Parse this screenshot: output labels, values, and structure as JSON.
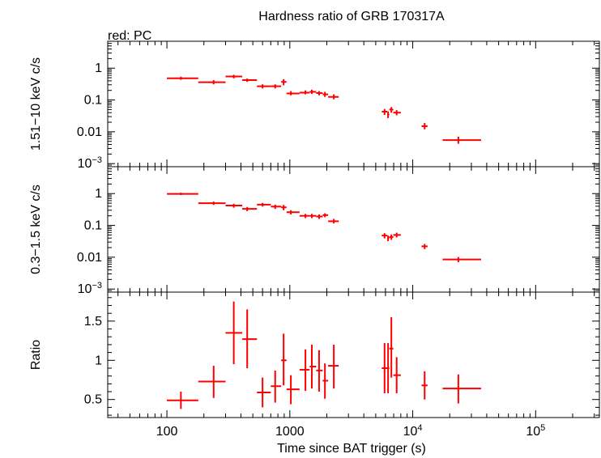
{
  "chart_data": {
    "type": "scatter",
    "title": "Hardness ratio of GRB 170317A",
    "legend_text": "red: PC",
    "xlabel": "Time since BAT trigger (s)",
    "xscale": "log",
    "xlim": [
      33,
      330000
    ],
    "x_ticks": [
      {
        "value": 100,
        "label": "100"
      },
      {
        "value": 1000,
        "label": "1000"
      },
      {
        "value": 10000,
        "label": "10",
        "exp": "4"
      },
      {
        "value": 100000,
        "label": "10",
        "exp": "5"
      }
    ],
    "series_color": "#ff0000",
    "panels": [
      {
        "name": "hard-band",
        "ylabel": "1.51−10 keV c/s",
        "yscale": "log",
        "ylim": [
          0.0008,
          7
        ],
        "y_ticks": [
          {
            "value": 1,
            "label": "1"
          },
          {
            "value": 0.1,
            "label": "0.1"
          },
          {
            "value": 0.01,
            "label": "0.01"
          },
          {
            "value": 0.001,
            "label": "10",
            "exp": "−3"
          }
        ],
        "points": [
          {
            "x": 130,
            "xlo": 100,
            "xhi": 180,
            "y": 0.48,
            "ylo": 0.43,
            "yhi": 0.54
          },
          {
            "x": 240,
            "xlo": 180,
            "xhi": 300,
            "y": 0.36,
            "ylo": 0.31,
            "yhi": 0.42
          },
          {
            "x": 350,
            "xlo": 300,
            "xhi": 410,
            "y": 0.55,
            "ylo": 0.48,
            "yhi": 0.62
          },
          {
            "x": 450,
            "xlo": 410,
            "xhi": 540,
            "y": 0.42,
            "ylo": 0.37,
            "yhi": 0.47
          },
          {
            "x": 600,
            "xlo": 540,
            "xhi": 700,
            "y": 0.27,
            "ylo": 0.23,
            "yhi": 0.31
          },
          {
            "x": 760,
            "xlo": 700,
            "xhi": 850,
            "y": 0.27,
            "ylo": 0.23,
            "yhi": 0.31
          },
          {
            "x": 890,
            "xlo": 850,
            "xhi": 940,
            "y": 0.37,
            "ylo": 0.29,
            "yhi": 0.45
          },
          {
            "x": 1020,
            "xlo": 940,
            "xhi": 1200,
            "y": 0.16,
            "ylo": 0.14,
            "yhi": 0.19
          },
          {
            "x": 1340,
            "xlo": 1200,
            "xhi": 1450,
            "y": 0.17,
            "ylo": 0.15,
            "yhi": 0.2
          },
          {
            "x": 1510,
            "xlo": 1450,
            "xhi": 1640,
            "y": 0.18,
            "ylo": 0.155,
            "yhi": 0.21
          },
          {
            "x": 1730,
            "xlo": 1640,
            "xhi": 1850,
            "y": 0.165,
            "ylo": 0.14,
            "yhi": 0.19
          },
          {
            "x": 1930,
            "xlo": 1850,
            "xhi": 2050,
            "y": 0.15,
            "ylo": 0.125,
            "yhi": 0.18
          },
          {
            "x": 2280,
            "xlo": 2050,
            "xhi": 2500,
            "y": 0.125,
            "ylo": 0.105,
            "yhi": 0.15
          },
          {
            "x": 5900,
            "xlo": 5600,
            "xhi": 6200,
            "y": 0.043,
            "ylo": 0.034,
            "yhi": 0.052
          },
          {
            "x": 6300,
            "xlo": 6200,
            "xhi": 6450,
            "y": 0.035,
            "ylo": 0.027,
            "yhi": 0.044
          },
          {
            "x": 6700,
            "xlo": 6450,
            "xhi": 6950,
            "y": 0.05,
            "ylo": 0.04,
            "yhi": 0.06
          },
          {
            "x": 7400,
            "xlo": 6950,
            "xhi": 8000,
            "y": 0.04,
            "ylo": 0.033,
            "yhi": 0.048
          },
          {
            "x": 12500,
            "xlo": 11800,
            "xhi": 13200,
            "y": 0.015,
            "ylo": 0.012,
            "yhi": 0.019
          },
          {
            "x": 23500,
            "xlo": 17500,
            "xhi": 36000,
            "y": 0.0055,
            "ylo": 0.0042,
            "yhi": 0.007
          }
        ]
      },
      {
        "name": "soft-band",
        "ylabel": "0.3−1.5 keV c/s",
        "yscale": "log",
        "ylim": [
          0.0008,
          7
        ],
        "y_ticks": [
          {
            "value": 1,
            "label": "1"
          },
          {
            "value": 0.1,
            "label": "0.1"
          },
          {
            "value": 0.01,
            "label": "0.01"
          },
          {
            "value": 0.001,
            "label": "10",
            "exp": "−3"
          }
        ],
        "points": [
          {
            "x": 130,
            "xlo": 100,
            "xhi": 180,
            "y": 0.98,
            "ylo": 0.9,
            "yhi": 1.07
          },
          {
            "x": 240,
            "xlo": 180,
            "xhi": 300,
            "y": 0.5,
            "ylo": 0.44,
            "yhi": 0.56
          },
          {
            "x": 350,
            "xlo": 300,
            "xhi": 410,
            "y": 0.42,
            "ylo": 0.36,
            "yhi": 0.48
          },
          {
            "x": 450,
            "xlo": 410,
            "xhi": 540,
            "y": 0.33,
            "ylo": 0.28,
            "yhi": 0.38
          },
          {
            "x": 600,
            "xlo": 540,
            "xhi": 700,
            "y": 0.45,
            "ylo": 0.39,
            "yhi": 0.51
          },
          {
            "x": 760,
            "xlo": 700,
            "xhi": 850,
            "y": 0.39,
            "ylo": 0.33,
            "yhi": 0.45
          },
          {
            "x": 890,
            "xlo": 850,
            "xhi": 940,
            "y": 0.37,
            "ylo": 0.3,
            "yhi": 0.44
          },
          {
            "x": 1020,
            "xlo": 940,
            "xhi": 1200,
            "y": 0.26,
            "ylo": 0.22,
            "yhi": 0.3
          },
          {
            "x": 1340,
            "xlo": 1200,
            "xhi": 1450,
            "y": 0.2,
            "ylo": 0.17,
            "yhi": 0.23
          },
          {
            "x": 1510,
            "xlo": 1450,
            "xhi": 1640,
            "y": 0.2,
            "ylo": 0.17,
            "yhi": 0.23
          },
          {
            "x": 1730,
            "xlo": 1640,
            "xhi": 1850,
            "y": 0.19,
            "ylo": 0.16,
            "yhi": 0.22
          },
          {
            "x": 1930,
            "xlo": 1850,
            "xhi": 2050,
            "y": 0.21,
            "ylo": 0.18,
            "yhi": 0.24
          },
          {
            "x": 2280,
            "xlo": 2050,
            "xhi": 2500,
            "y": 0.135,
            "ylo": 0.115,
            "yhi": 0.16
          },
          {
            "x": 5900,
            "xlo": 5600,
            "xhi": 6200,
            "y": 0.048,
            "ylo": 0.039,
            "yhi": 0.057
          },
          {
            "x": 6300,
            "xlo": 6200,
            "xhi": 6450,
            "y": 0.04,
            "ylo": 0.032,
            "yhi": 0.048
          },
          {
            "x": 6700,
            "xlo": 6450,
            "xhi": 6950,
            "y": 0.043,
            "ylo": 0.035,
            "yhi": 0.052
          },
          {
            "x": 7400,
            "xlo": 6950,
            "xhi": 8000,
            "y": 0.05,
            "ylo": 0.042,
            "yhi": 0.059
          },
          {
            "x": 12500,
            "xlo": 11800,
            "xhi": 13200,
            "y": 0.022,
            "ylo": 0.018,
            "yhi": 0.026
          },
          {
            "x": 23500,
            "xlo": 17500,
            "xhi": 36000,
            "y": 0.0085,
            "ylo": 0.007,
            "yhi": 0.0101
          }
        ]
      },
      {
        "name": "ratio",
        "ylabel": "Ratio",
        "yscale": "linear",
        "ylim": [
          0.27,
          1.87
        ],
        "y_ticks": [
          {
            "value": 0.5,
            "label": "0.5"
          },
          {
            "value": 1,
            "label": "1"
          },
          {
            "value": 1.5,
            "label": "1.5"
          }
        ],
        "y_minor_step": 0.1,
        "points": [
          {
            "x": 130,
            "xlo": 100,
            "xhi": 180,
            "y": 0.49,
            "ylo": 0.38,
            "yhi": 0.6
          },
          {
            "x": 240,
            "xlo": 180,
            "xhi": 300,
            "y": 0.73,
            "ylo": 0.52,
            "yhi": 0.93
          },
          {
            "x": 350,
            "xlo": 300,
            "xhi": 410,
            "y": 1.35,
            "ylo": 0.95,
            "yhi": 1.75
          },
          {
            "x": 450,
            "xlo": 410,
            "xhi": 540,
            "y": 1.27,
            "ylo": 0.9,
            "yhi": 1.65
          },
          {
            "x": 600,
            "xlo": 540,
            "xhi": 700,
            "y": 0.59,
            "ylo": 0.4,
            "yhi": 0.78
          },
          {
            "x": 760,
            "xlo": 700,
            "xhi": 850,
            "y": 0.67,
            "ylo": 0.46,
            "yhi": 0.87
          },
          {
            "x": 890,
            "xlo": 850,
            "xhi": 940,
            "y": 1.0,
            "ylo": 0.68,
            "yhi": 1.34
          },
          {
            "x": 1020,
            "xlo": 940,
            "xhi": 1200,
            "y": 0.63,
            "ylo": 0.44,
            "yhi": 0.81
          },
          {
            "x": 1340,
            "xlo": 1200,
            "xhi": 1450,
            "y": 0.88,
            "ylo": 0.61,
            "yhi": 1.14
          },
          {
            "x": 1510,
            "xlo": 1450,
            "xhi": 1640,
            "y": 0.92,
            "ylo": 0.64,
            "yhi": 1.2
          },
          {
            "x": 1730,
            "xlo": 1640,
            "xhi": 1850,
            "y": 0.87,
            "ylo": 0.6,
            "yhi": 1.13
          },
          {
            "x": 1930,
            "xlo": 1850,
            "xhi": 2050,
            "y": 0.74,
            "ylo": 0.51,
            "yhi": 0.96
          },
          {
            "x": 2280,
            "xlo": 2050,
            "xhi": 2500,
            "y": 0.93,
            "ylo": 0.64,
            "yhi": 1.2
          },
          {
            "x": 5900,
            "xlo": 5600,
            "xhi": 6200,
            "y": 0.9,
            "ylo": 0.58,
            "yhi": 1.22
          },
          {
            "x": 6300,
            "xlo": 6200,
            "xhi": 6450,
            "y": 0.9,
            "ylo": 0.58,
            "yhi": 1.22
          },
          {
            "x": 6700,
            "xlo": 6450,
            "xhi": 6950,
            "y": 1.15,
            "ylo": 0.78,
            "yhi": 1.55
          },
          {
            "x": 7400,
            "xlo": 6950,
            "xhi": 8000,
            "y": 0.81,
            "ylo": 0.58,
            "yhi": 1.04
          },
          {
            "x": 12500,
            "xlo": 11800,
            "xhi": 13200,
            "y": 0.68,
            "ylo": 0.5,
            "yhi": 0.86
          },
          {
            "x": 23500,
            "xlo": 17500,
            "xhi": 36000,
            "y": 0.64,
            "ylo": 0.45,
            "yhi": 0.82
          }
        ]
      }
    ]
  }
}
